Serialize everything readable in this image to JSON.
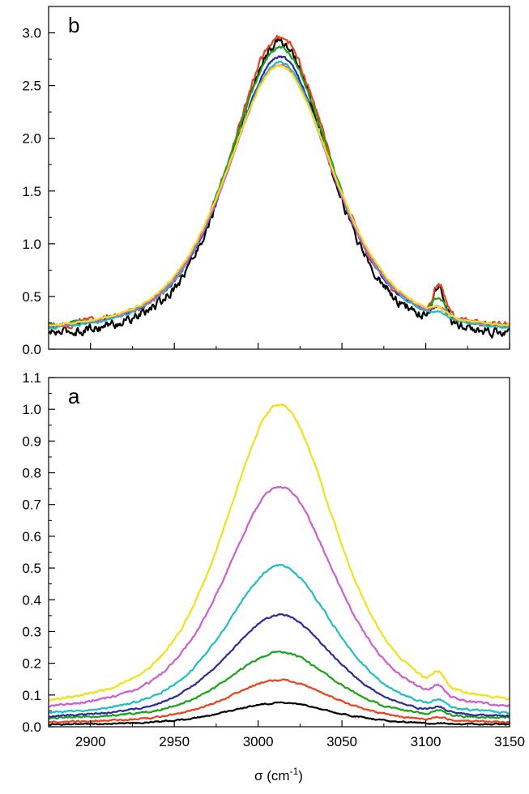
{
  "chart_data": [
    {
      "type": "line",
      "panel_label": "b",
      "xlim": [
        2875,
        3150
      ],
      "ylim": [
        0,
        3.25
      ],
      "x_ticks": [
        "2900",
        "2950",
        "3000",
        "3050",
        "3100",
        "3150"
      ],
      "y_ticks": [
        "0.0",
        "0.5",
        "1.0",
        "1.5",
        "2.0",
        "2.5",
        "3.0"
      ],
      "x_tick_values": [
        2900,
        2950,
        3000,
        3050,
        3100,
        3150
      ],
      "y_tick_values": [
        0,
        0.5,
        1.0,
        1.5,
        2.0,
        2.5,
        3.0
      ],
      "peak_x": 3013,
      "series": [
        {
          "color": "#000000",
          "peak": 2.86,
          "width": 36,
          "baseline": 0.05,
          "noise": 0.09,
          "bump": 0.35
        },
        {
          "color": "#e8431b",
          "peak": 2.84,
          "width": 36,
          "baseline": 0.12,
          "noise": 0.06,
          "bump": 0.3
        },
        {
          "color": "#1aa31a",
          "peak": 2.74,
          "width": 37,
          "baseline": 0.12,
          "noise": 0.035,
          "bump": 0.15
        },
        {
          "color": "#2b2b99",
          "peak": 2.65,
          "width": 37,
          "baseline": 0.12,
          "noise": 0.025,
          "bump": 0.08
        },
        {
          "color": "#1fbfbf",
          "peak": 2.62,
          "width": 38,
          "baseline": 0.1,
          "noise": 0.02,
          "bump": 0.04
        },
        {
          "color": "#cc5fcc",
          "peak": 2.58,
          "width": 38,
          "baseline": 0.12,
          "noise": 0.02,
          "bump": 0.08
        },
        {
          "color": "#f2e01a",
          "peak": 2.56,
          "width": 39,
          "baseline": 0.12,
          "noise": 0.02,
          "bump": 0.06
        }
      ]
    },
    {
      "type": "line",
      "panel_label": "a",
      "xlabel": "σ (cm",
      "xlabel_sup": "-1",
      "xlabel_end": ")",
      "xlim": [
        2875,
        3150
      ],
      "ylim": [
        0,
        1.1
      ],
      "x_ticks": [
        "2900",
        "2950",
        "3000",
        "3050",
        "3100",
        "3150"
      ],
      "y_ticks": [
        "0.0",
        "0.1",
        "0.2",
        "0.3",
        "0.4",
        "0.5",
        "0.6",
        "0.7",
        "0.8",
        "0.9",
        "1.0",
        "1.1"
      ],
      "x_tick_values": [
        2900,
        2950,
        3000,
        3050,
        3100,
        3150
      ],
      "y_tick_values": [
        0,
        0.1,
        0.2,
        0.3,
        0.4,
        0.5,
        0.6,
        0.7,
        0.8,
        0.9,
        1.0,
        1.1
      ],
      "peak_x": 3013,
      "series": [
        {
          "color": "#000000",
          "peak": 0.07,
          "width": 38,
          "baseline": 0.005,
          "noise": 0.004,
          "bump": 0.0
        },
        {
          "color": "#e8431b",
          "peak": 0.137,
          "width": 38,
          "baseline": 0.01,
          "noise": 0.005,
          "bump": 0.01
        },
        {
          "color": "#1aa31a",
          "peak": 0.215,
          "width": 38,
          "baseline": 0.02,
          "noise": 0.006,
          "bump": 0.015
        },
        {
          "color": "#2b2b99",
          "peak": 0.333,
          "width": 39,
          "baseline": 0.02,
          "noise": 0.005,
          "bump": 0.015
        },
        {
          "color": "#1fbfbf",
          "peak": 0.482,
          "width": 39,
          "baseline": 0.025,
          "noise": 0.006,
          "bump": 0.02
        },
        {
          "color": "#cc5fcc",
          "peak": 0.722,
          "width": 40,
          "baseline": 0.035,
          "noise": 0.007,
          "bump": 0.03
        },
        {
          "color": "#f2e01a",
          "peak": 0.97,
          "width": 40,
          "baseline": 0.045,
          "noise": 0.008,
          "bump": 0.04
        }
      ]
    }
  ]
}
